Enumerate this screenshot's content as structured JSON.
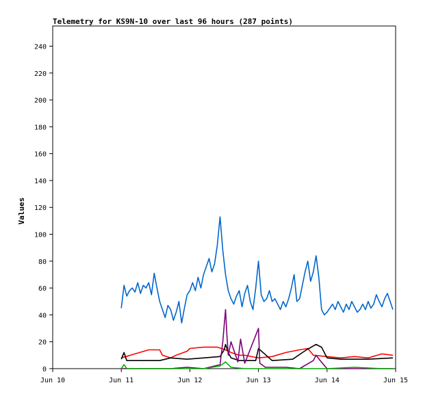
{
  "chart_data": {
    "type": "line",
    "title": "Telemetry for KS9N-10 over last 96 hours (287 points)",
    "xlabel": "",
    "ylabel": "Values",
    "xlim": [
      "Jun 10",
      "Jun 15"
    ],
    "ylim": [
      0,
      255
    ],
    "x_ticks": [
      "Jun 10",
      "Jun 11",
      "Jun 12",
      "Jun 13",
      "Jun 14",
      "Jun 15"
    ],
    "y_ticks": [
      0,
      20,
      40,
      60,
      80,
      100,
      120,
      140,
      160,
      180,
      200,
      220,
      240
    ],
    "grid": false,
    "legend": "none",
    "series": [
      {
        "color": "#0066cc",
        "x": [
          0.0,
          0.04,
          0.08,
          0.12,
          0.16,
          0.2,
          0.24,
          0.28,
          0.32,
          0.36,
          0.4,
          0.44,
          0.48,
          0.52,
          0.56,
          0.6,
          0.64,
          0.68,
          0.72,
          0.76,
          0.8,
          0.84,
          0.88,
          0.92,
          0.96,
          1.0,
          1.04,
          1.08,
          1.12,
          1.16,
          1.2,
          1.24,
          1.28,
          1.32,
          1.36,
          1.4,
          1.44,
          1.48,
          1.52,
          1.56,
          1.6,
          1.64,
          1.68,
          1.72,
          1.76,
          1.8,
          1.84,
          1.88,
          1.92,
          1.96,
          2.0,
          2.04,
          2.08,
          2.12,
          2.16,
          2.2,
          2.24,
          2.28,
          2.32,
          2.36,
          2.4,
          2.44,
          2.48,
          2.52,
          2.56,
          2.6,
          2.64,
          2.68,
          2.72,
          2.76,
          2.8,
          2.84,
          2.88,
          2.92,
          2.96,
          3.0,
          3.04,
          3.08,
          3.12,
          3.16,
          3.2,
          3.24,
          3.28,
          3.32,
          3.36,
          3.4,
          3.44,
          3.48,
          3.52,
          3.56,
          3.6,
          3.64,
          3.68,
          3.72,
          3.76,
          3.8,
          3.84,
          3.88,
          3.92,
          3.96
        ],
        "y": [
          45,
          62,
          54,
          58,
          60,
          57,
          64,
          56,
          62,
          60,
          64,
          55,
          71,
          60,
          50,
          44,
          38,
          47,
          44,
          36,
          42,
          50,
          34,
          45,
          55,
          58,
          64,
          58,
          68,
          60,
          70,
          76,
          82,
          72,
          78,
          92,
          113,
          88,
          70,
          58,
          52,
          48,
          54,
          58,
          46,
          56,
          62,
          50,
          44,
          60,
          80,
          55,
          50,
          52,
          58,
          50,
          52,
          48,
          44,
          50,
          46,
          52,
          60,
          70,
          50,
          52,
          62,
          72,
          80,
          65,
          72,
          84,
          68,
          44,
          40,
          42,
          45,
          48,
          44,
          50,
          46,
          42,
          48,
          44,
          50,
          46,
          42,
          44,
          48,
          44,
          50,
          45,
          48,
          55,
          50,
          46,
          52,
          56,
          50,
          44
        ]
      },
      {
        "color": "#ff0000",
        "x": [
          0.0,
          0.2,
          0.4,
          0.56,
          0.6,
          0.72,
          0.8,
          0.96,
          1.0,
          1.2,
          1.4,
          1.52,
          1.6,
          1.72,
          1.8,
          2.0,
          2.2,
          2.4,
          2.6,
          2.72,
          2.8,
          3.0,
          3.2,
          3.4,
          3.6,
          3.8,
          3.96
        ],
        "y": [
          8,
          11,
          14,
          14,
          10,
          8,
          10,
          13,
          15,
          16,
          16,
          14,
          12,
          10,
          10,
          8,
          9,
          12,
          14,
          15,
          10,
          9,
          8,
          9,
          8,
          11,
          10
        ]
      },
      {
        "color": "#000000",
        "x": [
          0.0,
          0.04,
          0.08,
          0.2,
          0.4,
          0.56,
          0.72,
          0.96,
          1.2,
          1.44,
          1.5,
          1.52,
          1.56,
          1.6,
          1.72,
          1.96,
          2.0,
          2.2,
          2.5,
          2.7,
          2.84,
          2.92,
          3.0,
          3.2,
          3.6,
          3.96
        ],
        "y": [
          7,
          12,
          6,
          6,
          6,
          6,
          8,
          7,
          8,
          9,
          14,
          18,
          12,
          8,
          6,
          6,
          15,
          6,
          7,
          14,
          18,
          16,
          8,
          7,
          7,
          8
        ]
      },
      {
        "color": "#7a0077",
        "x": [
          0.0,
          0.1,
          0.2,
          0.3,
          0.4,
          0.6,
          0.72,
          0.96,
          1.2,
          1.44,
          1.48,
          1.52,
          1.54,
          1.56,
          1.6,
          1.7,
          1.74,
          1.8,
          2.0,
          2.02,
          2.1,
          2.4,
          2.6,
          2.8,
          2.84,
          2.9,
          3.0,
          3.2,
          3.4,
          3.6,
          3.8,
          3.96
        ],
        "y": [
          0,
          0,
          0,
          0,
          0,
          0,
          0,
          1,
          0,
          3,
          20,
          44,
          25,
          10,
          20,
          5,
          22,
          4,
          30,
          4,
          1,
          1,
          0,
          6,
          10,
          6,
          0,
          0,
          0,
          0,
          0,
          0
        ]
      },
      {
        "color": "#00aa00",
        "x": [
          0.0,
          0.04,
          0.08,
          0.4,
          0.6,
          0.96,
          1.2,
          1.44,
          1.52,
          1.56,
          1.6,
          1.8,
          2.0,
          2.4,
          2.8,
          3.0,
          3.4,
          3.8,
          3.96
        ],
        "y": [
          0,
          3,
          0,
          0,
          0,
          0,
          0,
          2,
          5,
          3,
          1,
          0,
          0,
          0,
          0,
          0,
          1,
          0,
          0
        ]
      }
    ]
  }
}
